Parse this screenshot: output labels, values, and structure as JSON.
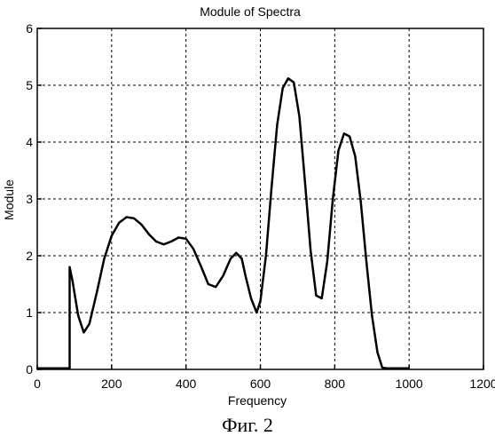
{
  "chart_data": {
    "type": "line",
    "title": "Module of Spectra",
    "xlabel": "Frequency",
    "ylabel": "Module",
    "xlim": [
      0,
      1200
    ],
    "ylim": [
      0,
      6
    ],
    "xticks": [
      0,
      200,
      400,
      600,
      800,
      1000,
      1200
    ],
    "yticks": [
      0,
      1,
      2,
      3,
      4,
      5,
      6
    ],
    "grid": true,
    "series": [
      {
        "x": [
          0,
          87,
          87,
          95,
          110,
          125,
          140,
          160,
          180,
          200,
          220,
          240,
          260,
          280,
          300,
          320,
          340,
          360,
          380,
          400,
          420,
          440,
          460,
          480,
          500,
          520,
          535,
          550,
          560,
          575,
          590,
          600,
          615,
          630,
          645,
          660,
          675,
          690,
          705,
          720,
          735,
          750,
          765,
          780,
          795,
          810,
          825,
          840,
          855,
          870,
          885,
          900,
          915,
          928,
          940,
          1000
        ],
        "y": [
          0.02,
          0.02,
          1.8,
          1.55,
          0.95,
          0.65,
          0.8,
          1.35,
          1.95,
          2.35,
          2.58,
          2.68,
          2.66,
          2.55,
          2.38,
          2.25,
          2.2,
          2.25,
          2.32,
          2.3,
          2.12,
          1.82,
          1.5,
          1.45,
          1.65,
          1.95,
          2.05,
          1.95,
          1.65,
          1.25,
          1.0,
          1.2,
          2.0,
          3.2,
          4.3,
          4.95,
          5.12,
          5.05,
          4.45,
          3.3,
          2.1,
          1.3,
          1.25,
          1.9,
          3.0,
          3.85,
          4.15,
          4.1,
          3.75,
          2.95,
          1.9,
          0.95,
          0.3,
          0.03,
          0.02,
          0.02
        ]
      }
    ]
  },
  "caption": "Фиг. 2"
}
